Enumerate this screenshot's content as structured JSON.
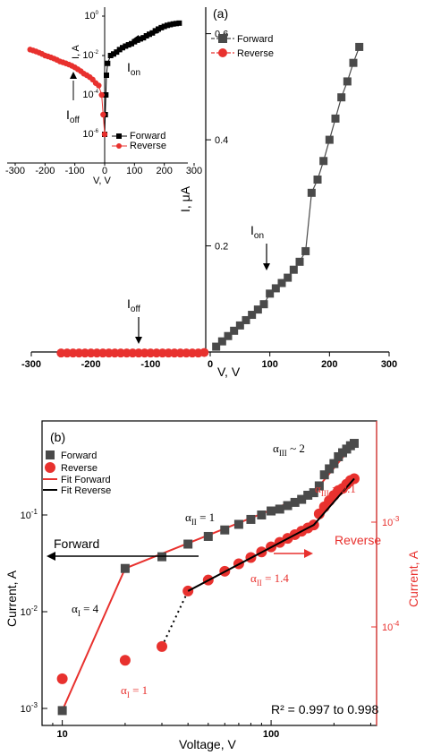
{
  "colors": {
    "forward": "#4a4a4a",
    "reverse": "#e8312e",
    "fit_forward": "#e8312e",
    "fit_reverse": "#000000"
  },
  "chart_data": [
    {
      "id": "a",
      "type": "scatter",
      "panel_label": "(a)",
      "xlabel": "V, V",
      "ylabel": "I, μA",
      "xlim": [
        -300,
        300
      ],
      "ylim": [
        0,
        0.65
      ],
      "xticks": [
        -300,
        -200,
        -100,
        0,
        100,
        200,
        300
      ],
      "yticks": [
        0.2,
        0.4,
        0.6
      ],
      "legend": {
        "position": "top-right",
        "entries": [
          "Forward",
          "Reverse"
        ]
      },
      "series": [
        {
          "name": "Forward",
          "marker": "square",
          "x": [
            10,
            20,
            30,
            40,
            50,
            60,
            70,
            80,
            90,
            100,
            110,
            120,
            130,
            140,
            150,
            160,
            170,
            180,
            190,
            200,
            210,
            220,
            230,
            240,
            250
          ],
          "y": [
            0.01,
            0.02,
            0.03,
            0.04,
            0.05,
            0.06,
            0.07,
            0.08,
            0.09,
            0.11,
            0.12,
            0.13,
            0.14,
            0.155,
            0.17,
            0.19,
            0.3,
            0.325,
            0.36,
            0.4,
            0.44,
            0.48,
            0.51,
            0.545,
            0.575
          ]
        },
        {
          "name": "Reverse",
          "marker": "circle",
          "x": [
            -250,
            -240,
            -230,
            -220,
            -210,
            -200,
            -190,
            -180,
            -170,
            -160,
            -150,
            -140,
            -130,
            -120,
            -110,
            -100,
            -90,
            -80,
            -70,
            -60,
            -50,
            -40,
            -30,
            -20,
            -10
          ],
          "y": [
            -0.002,
            -0.002,
            -0.002,
            -0.002,
            -0.002,
            -0.002,
            -0.002,
            -0.002,
            -0.002,
            -0.002,
            -0.002,
            -0.002,
            -0.002,
            -0.002,
            -0.002,
            -0.002,
            -0.002,
            -0.002,
            -0.002,
            -0.002,
            -0.002,
            -0.002,
            -0.002,
            -0.002,
            -0.001
          ]
        }
      ],
      "annotations": {
        "ion": "I",
        "ion_sub": "on",
        "ioff": "I",
        "ioff_sub": "off"
      },
      "inset": {
        "type": "scatter",
        "yscale": "log",
        "ylabel": "I, A",
        "xlabel": "V, V",
        "xlim": [
          -300,
          300
        ],
        "ylim": [
          1e-07,
          2
        ],
        "xticks": [
          -300,
          -200,
          -100,
          0,
          100,
          200,
          300
        ],
        "yticks": [
          {
            "base": "10",
            "exp": "0",
            "value": 1
          },
          {
            "base": "10",
            "exp": "-2",
            "value": 0.01
          },
          {
            "base": "10",
            "exp": "-4",
            "value": 0.0001
          },
          {
            "base": "10",
            "exp": "-6",
            "value": 1e-06
          }
        ],
        "legend": {
          "position": "bottom-right",
          "entries": [
            "Forward",
            "Reverse"
          ]
        },
        "series": [
          {
            "name": "Forward",
            "marker": "square",
            "x": [
              0,
              2,
              4,
              6,
              10,
              20,
              30,
              40,
              50,
              60,
              70,
              80,
              90,
              100,
              110,
              120,
              130,
              140,
              150,
              160,
              170,
              180,
              190,
              200,
              210,
              220,
              230,
              240,
              250
            ],
            "y": [
              1e-06,
              1e-05,
              0.0001,
              0.001,
              0.004,
              0.01,
              0.012,
              0.015,
              0.02,
              0.025,
              0.03,
              0.035,
              0.04,
              0.05,
              0.06,
              0.07,
              0.08,
              0.1,
              0.12,
              0.14,
              0.18,
              0.22,
              0.26,
              0.3,
              0.34,
              0.37,
              0.4,
              0.42,
              0.44
            ]
          },
          {
            "name": "Reverse",
            "marker": "circle",
            "x": [
              -250,
              -240,
              -230,
              -220,
              -210,
              -200,
              -190,
              -180,
              -170,
              -160,
              -150,
              -140,
              -130,
              -120,
              -110,
              -100,
              -90,
              -80,
              -70,
              -60,
              -50,
              -40,
              -30,
              -20,
              -10,
              -5,
              0
            ],
            "y": [
              0.02,
              0.018,
              0.016,
              0.014,
              0.012,
              0.01,
              0.009,
              0.008,
              0.007,
              0.006,
              0.005,
              0.0045,
              0.004,
              0.0035,
              0.003,
              0.0025,
              0.002,
              0.0016,
              0.0012,
              0.001,
              0.0008,
              0.0006,
              0.0004,
              0.0003,
              0.0001,
              1e-05,
              1e-06
            ]
          }
        ],
        "annotations": {
          "ion": "I",
          "ion_sub": "on",
          "ioff": "I",
          "ioff_sub": "off"
        }
      }
    },
    {
      "id": "b",
      "type": "scatter",
      "panel_label": "(b)",
      "xscale": "log",
      "yscale": "log",
      "xlabel": "Voltage, V",
      "ylabel": "Current, A",
      "ylabel_right": "Current, A",
      "xlim": [
        8,
        320
      ],
      "ylim": [
        0.0008,
        0.7
      ],
      "ylim_right": [
        2e-05,
        0.003
      ],
      "xticks": [
        {
          "label": "10",
          "value": 10
        },
        {
          "label": "100",
          "value": 100
        }
      ],
      "yticks": [
        {
          "base": "10",
          "exp": "-1",
          "value": 0.1
        },
        {
          "base": "10",
          "exp": "-2",
          "value": 0.01
        },
        {
          "base": "10",
          "exp": "-3",
          "value": 0.001
        }
      ],
      "yticks_right": [
        {
          "base": "10",
          "exp": "-3",
          "value": 0.001
        },
        {
          "base": "10",
          "exp": "-4",
          "value": 0.0001
        }
      ],
      "legend": {
        "position": "top-left",
        "entries": [
          "Forward",
          "Reverse",
          "Fit Forward",
          "Fit Reverse"
        ]
      },
      "series": [
        {
          "name": "Forward",
          "marker": "square",
          "axis": "left",
          "x": [
            10,
            20,
            30,
            40,
            50,
            60,
            70,
            80,
            90,
            100,
            110,
            120,
            130,
            140,
            150,
            160,
            170,
            180,
            190,
            200,
            210,
            220,
            230,
            240,
            250
          ],
          "y": [
            0.00095,
            0.028,
            0.037,
            0.05,
            0.06,
            0.07,
            0.08,
            0.09,
            0.1,
            0.11,
            0.115,
            0.125,
            0.135,
            0.145,
            0.16,
            0.17,
            0.2,
            0.26,
            0.3,
            0.34,
            0.4,
            0.44,
            0.48,
            0.52,
            0.55
          ]
        },
        {
          "name": "Reverse",
          "marker": "circle",
          "axis": "right",
          "x": [
            10,
            20,
            30,
            40,
            50,
            60,
            70,
            80,
            90,
            100,
            110,
            120,
            130,
            140,
            150,
            160,
            170,
            180,
            190,
            200,
            210,
            220,
            230,
            240,
            250
          ],
          "y": [
            3.2e-05,
            4.8e-05,
            6.5e-05,
            0.00022,
            0.00028,
            0.00034,
            0.0004,
            0.00046,
            0.00052,
            0.00058,
            0.00064,
            0.0007,
            0.00076,
            0.00082,
            0.00088,
            0.00094,
            0.0012,
            0.0014,
            0.0016,
            0.0018,
            0.002,
            0.0021,
            0.0023,
            0.0025,
            0.0026
          ]
        },
        {
          "name": "Fit Forward",
          "line": true,
          "axis": "left",
          "x": [
            10,
            20,
            150,
            160,
            250
          ],
          "y": [
            0.00095,
            0.028,
            0.16,
            0.17,
            0.55
          ]
        },
        {
          "name": "Fit Reverse",
          "line": true,
          "axis": "right",
          "x": [
            40,
            150,
            160,
            250
          ],
          "y": [
            0.00022,
            0.00088,
            0.00094,
            0.0026
          ]
        }
      ],
      "fit_dotted": {
        "x": [
          30,
          40
        ],
        "y": [
          6.5e-05,
          0.00022
        ],
        "axis": "right"
      },
      "annotations": {
        "alpha": "α",
        "a3_forward": {
          "sub": "III",
          "text": " ~ 2"
        },
        "a2_forward": {
          "sub": "II",
          "text": " = 1"
        },
        "a1_forward": {
          "sub": "I",
          "text": " = 4"
        },
        "a3_reverse": {
          "sub": "III",
          "text": " = 2.1"
        },
        "a2_reverse": {
          "sub": "II",
          "text": " = 1.4"
        },
        "a1_reverse": {
          "sub": "I",
          "text": " = 1"
        },
        "forward_label": "Forward",
        "reverse_label": "Reverse",
        "r2": "R² = 0.997 to 0.998"
      }
    }
  ]
}
